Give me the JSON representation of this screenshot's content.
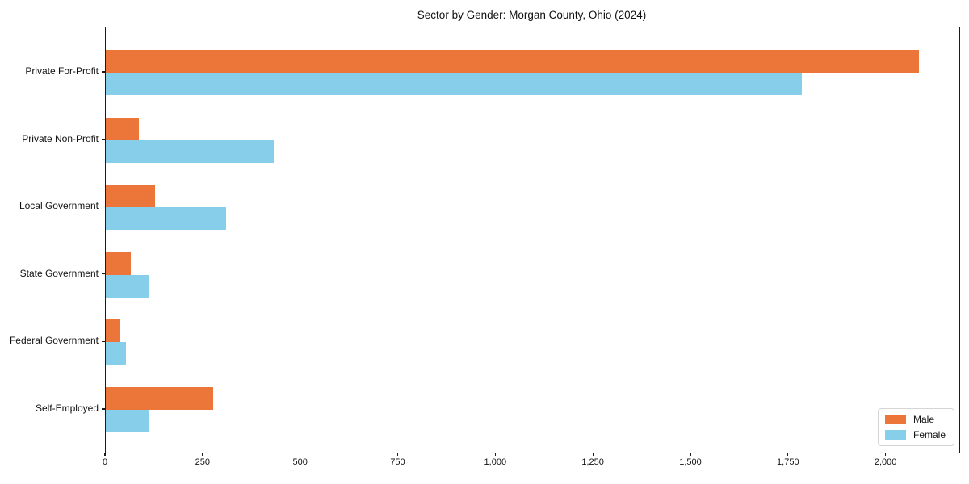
{
  "figure": {
    "background": "#ffffff",
    "spine_color": "#1a1a1a",
    "text_color": "#111111"
  },
  "chart_data": {
    "type": "bar",
    "orientation": "horizontal",
    "title": "Sector by Gender: Morgan County, Ohio (2024)",
    "categories": [
      "Private For-Profit",
      "Private Non-Profit",
      "Local Government",
      "State Government",
      "Federal Government",
      "Self-Employed"
    ],
    "series": [
      {
        "name": "Male",
        "color": "#ec7639",
        "values": [
          2083,
          85,
          126,
          64,
          35,
          275
        ]
      },
      {
        "name": "Female",
        "color": "#87ceeb",
        "values": [
          1783,
          430,
          308,
          110,
          52,
          112
        ]
      }
    ],
    "xlabel": "",
    "ylabel": "",
    "xlim": [
      0,
      2187
    ],
    "xticks": [
      0,
      250,
      500,
      750,
      1000,
      1250,
      1500,
      1750,
      2000
    ],
    "xtick_labels": [
      "0",
      "250",
      "500",
      "750",
      "1,000",
      "1,250",
      "1,500",
      "1,750",
      "2,000"
    ],
    "grid": false,
    "legend": {
      "position": "lower right",
      "entries": [
        "Male",
        "Female"
      ]
    }
  }
}
